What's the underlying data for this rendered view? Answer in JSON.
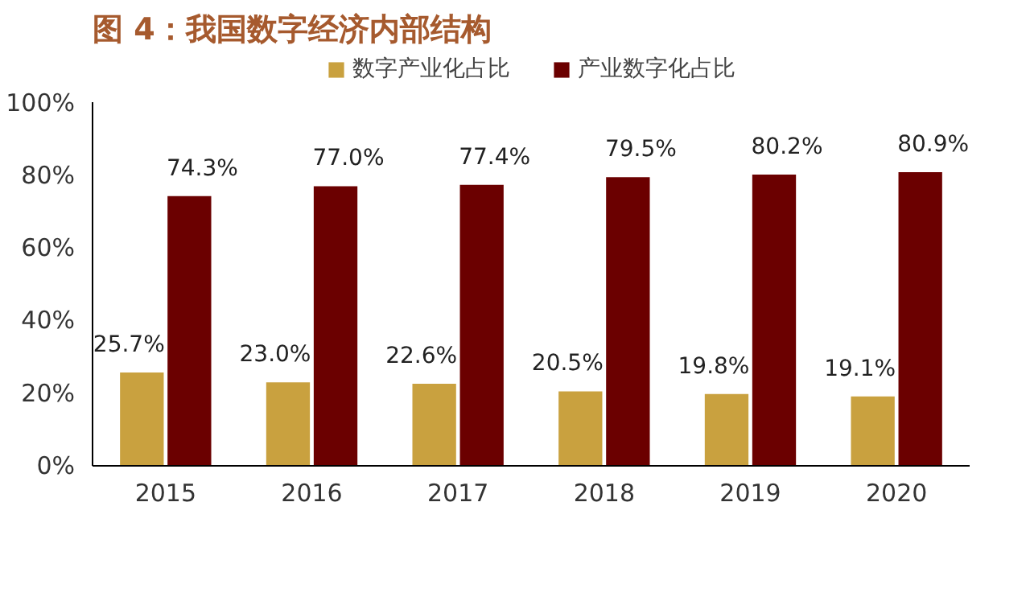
{
  "chart_data": {
    "type": "bar",
    "title": "图 4：我国数字经济内部结构",
    "categories": [
      "2015",
      "2016",
      "2017",
      "2018",
      "2019",
      "2020"
    ],
    "series": [
      {
        "name": "数字产业化占比",
        "color": "#c9a13f",
        "values": [
          25.7,
          23.0,
          22.6,
          20.5,
          19.8,
          19.1
        ],
        "value_labels": [
          "25.7%",
          "23.0%",
          "22.6%",
          "20.5%",
          "19.8%",
          "19.1%"
        ]
      },
      {
        "name": "产业数字化占比",
        "color": "#6b0000",
        "values": [
          74.3,
          77.0,
          77.4,
          79.5,
          80.2,
          80.9
        ],
        "value_labels": [
          "74.3%",
          "77.0%",
          "77.4%",
          "79.5%",
          "80.2%",
          "80.9%"
        ]
      }
    ],
    "ylim": [
      0,
      100
    ],
    "yticks": [
      {
        "value": 0,
        "label": "0%"
      },
      {
        "value": 20,
        "label": "20%"
      },
      {
        "value": 40,
        "label": "40%"
      },
      {
        "value": 60,
        "label": "60%"
      },
      {
        "value": 80,
        "label": "80%"
      },
      {
        "value": 100,
        "label": "100%"
      }
    ],
    "grid": false,
    "legend": "top"
  }
}
